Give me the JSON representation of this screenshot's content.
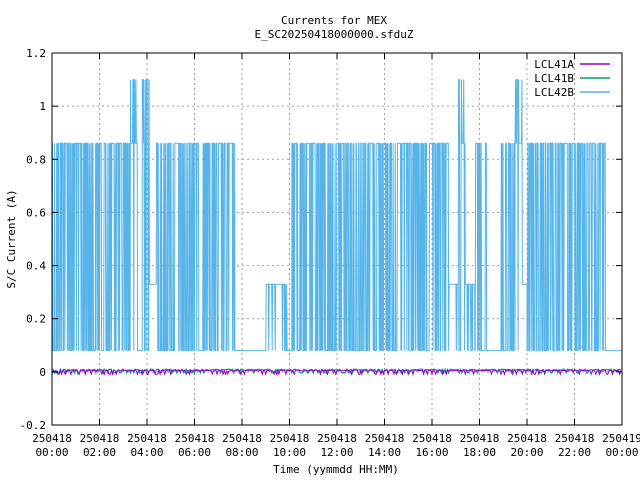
{
  "chart_data": {
    "type": "line",
    "title": "Currents for MEX",
    "subtitle": "E_SC20250418000000.sfduZ",
    "xlabel": "Time (yymmdd HH:MM)",
    "ylabel": "S/C Current (A)",
    "xlim": [
      0,
      24
    ],
    "ylim": [
      -0.2,
      1.2
    ],
    "grid": true,
    "legend_position": "top-right",
    "yticks": [
      {
        "value": -0.2,
        "label": "-0.2"
      },
      {
        "value": 0,
        "label": "0"
      },
      {
        "value": 0.2,
        "label": "0.2"
      },
      {
        "value": 0.4,
        "label": "0.4"
      },
      {
        "value": 0.6,
        "label": "0.6"
      },
      {
        "value": 0.8,
        "label": "0.8"
      },
      {
        "value": 1.0,
        "label": "1"
      },
      {
        "value": 1.2,
        "label": "1.2"
      }
    ],
    "xticks": [
      {
        "value": 0,
        "date": "250418",
        "time": "00:00"
      },
      {
        "value": 2,
        "date": "250418",
        "time": "02:00"
      },
      {
        "value": 4,
        "date": "250418",
        "time": "04:00"
      },
      {
        "value": 6,
        "date": "250418",
        "time": "06:00"
      },
      {
        "value": 8,
        "date": "250418",
        "time": "08:00"
      },
      {
        "value": 10,
        "date": "250418",
        "time": "10:00"
      },
      {
        "value": 12,
        "date": "250418",
        "time": "12:00"
      },
      {
        "value": 14,
        "date": "250418",
        "time": "14:00"
      },
      {
        "value": 16,
        "date": "250418",
        "time": "16:00"
      },
      {
        "value": 18,
        "date": "250418",
        "time": "18:00"
      },
      {
        "value": 20,
        "date": "250418",
        "time": "20:00"
      },
      {
        "value": 22,
        "date": "250418",
        "time": "22:00"
      },
      {
        "value": 24,
        "date": "250419",
        "time": "00:00"
      }
    ],
    "series": [
      {
        "name": "LCL41A",
        "color": "#9400d3",
        "values_summary": "near 0, small dips to about -0.01",
        "x": [
          0,
          24
        ],
        "y": [
          0.005,
          0.005
        ]
      },
      {
        "name": "LCL41B",
        "color": "#009e73",
        "values_summary": "near 0",
        "x": [
          0,
          24
        ],
        "y": [
          0.008,
          0.008
        ]
      },
      {
        "name": "LCL42B",
        "color": "#56b4e9",
        "values_summary": "rapid switching between ~0.08 and ~0.86 A, with peaks to ~1.1 A",
        "low": 0.08,
        "high": 0.86,
        "segments": [
          {
            "x0": 0.0,
            "x1": 3.3,
            "mode": "switch"
          },
          {
            "x0": 3.3,
            "x1": 3.6,
            "mode": "switch_peak",
            "peak": 1.1
          },
          {
            "x0": 3.6,
            "x1": 3.8,
            "mode": "const",
            "y": 0.08
          },
          {
            "x0": 3.8,
            "x1": 4.1,
            "mode": "switch_peak",
            "peak": 1.1
          },
          {
            "x0": 4.1,
            "x1": 4.4,
            "mode": "const",
            "y": 0.33
          },
          {
            "x0": 4.4,
            "x1": 7.7,
            "mode": "switch"
          },
          {
            "x0": 7.7,
            "x1": 9.0,
            "mode": "const",
            "y": 0.08
          },
          {
            "x0": 9.0,
            "x1": 9.9,
            "mode": "plateau",
            "y": 0.33
          },
          {
            "x0": 9.9,
            "x1": 10.1,
            "mode": "const",
            "y": 0.08
          },
          {
            "x0": 10.1,
            "x1": 16.7,
            "mode": "switch"
          },
          {
            "x0": 16.7,
            "x1": 17.1,
            "mode": "plateau",
            "y": 0.33
          },
          {
            "x0": 17.1,
            "x1": 17.4,
            "mode": "switch_peak",
            "peak": 1.1
          },
          {
            "x0": 17.4,
            "x1": 17.8,
            "mode": "plateau",
            "y": 0.33
          },
          {
            "x0": 17.8,
            "x1": 18.3,
            "mode": "switch"
          },
          {
            "x0": 18.3,
            "x1": 18.9,
            "mode": "const",
            "y": 0.08
          },
          {
            "x0": 18.9,
            "x1": 19.5,
            "mode": "switch"
          },
          {
            "x0": 19.5,
            "x1": 19.8,
            "mode": "switch_peak",
            "peak": 1.1
          },
          {
            "x0": 19.8,
            "x1": 20.0,
            "mode": "const",
            "y": 0.33
          },
          {
            "x0": 20.0,
            "x1": 23.3,
            "mode": "switch"
          },
          {
            "x0": 23.3,
            "x1": 24.0,
            "mode": "const",
            "y": 0.08
          }
        ]
      }
    ]
  }
}
